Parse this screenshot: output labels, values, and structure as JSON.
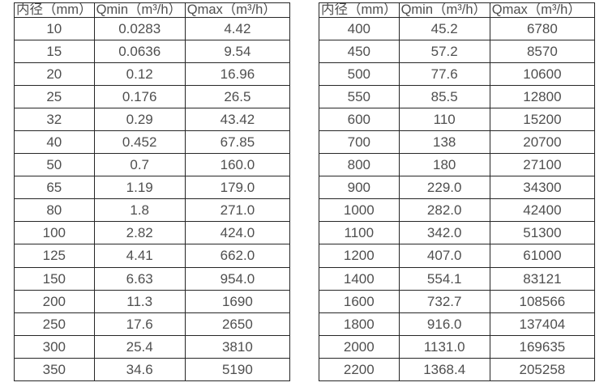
{
  "page": {
    "background_color": "#ffffff",
    "border_color": "#262626",
    "text_color": "#4f4f4f"
  },
  "tables": [
    {
      "name": "flow-spec-table-small-diameters",
      "headers": [
        "内径（mm）",
        "Qmin（m³/h）",
        "Qmax（m³/h）"
      ],
      "rows": [
        [
          "10",
          "0.0283",
          "4.42"
        ],
        [
          "15",
          "0.0636",
          "9.54"
        ],
        [
          "20",
          "0.12",
          "16.96"
        ],
        [
          "25",
          "0.176",
          "26.5"
        ],
        [
          "32",
          "0.29",
          "43.42"
        ],
        [
          "40",
          "0.452",
          "67.85"
        ],
        [
          "50",
          "0.7",
          "160.0"
        ],
        [
          "65",
          "1.19",
          "179.0"
        ],
        [
          "80",
          "1.8",
          "271.0"
        ],
        [
          "100",
          "2.82",
          "424.0"
        ],
        [
          "125",
          "4.41",
          "662.0"
        ],
        [
          "150",
          "6.63",
          "954.0"
        ],
        [
          "200",
          "11.3",
          "1690"
        ],
        [
          "250",
          "17.6",
          "2650"
        ],
        [
          "300",
          "25.4",
          "3810"
        ],
        [
          "350",
          "34.6",
          "5190"
        ]
      ]
    },
    {
      "name": "flow-spec-table-large-diameters",
      "headers": [
        "内径（mm）",
        "Qmin（m³/h）",
        "Qmax（m³/h）"
      ],
      "rows": [
        [
          "400",
          "45.2",
          "6780"
        ],
        [
          "450",
          "57.2",
          "8570"
        ],
        [
          "500",
          "77.6",
          "10600"
        ],
        [
          "550",
          "85.5",
          "12800"
        ],
        [
          "600",
          "110",
          "15200"
        ],
        [
          "700",
          "138",
          "20700"
        ],
        [
          "800",
          "180",
          "27100"
        ],
        [
          "900",
          "229.0",
          "34300"
        ],
        [
          "1000",
          "282.0",
          "42400"
        ],
        [
          "1100",
          "342.0",
          "51300"
        ],
        [
          "1200",
          "407.0",
          "61000"
        ],
        [
          "1400",
          "554.1",
          "83121"
        ],
        [
          "1600",
          "732.7",
          "108566"
        ],
        [
          "1800",
          "916.0",
          "137404"
        ],
        [
          "2000",
          "1131.0",
          "169635"
        ],
        [
          "2200",
          "1368.4",
          "205258"
        ]
      ]
    }
  ]
}
